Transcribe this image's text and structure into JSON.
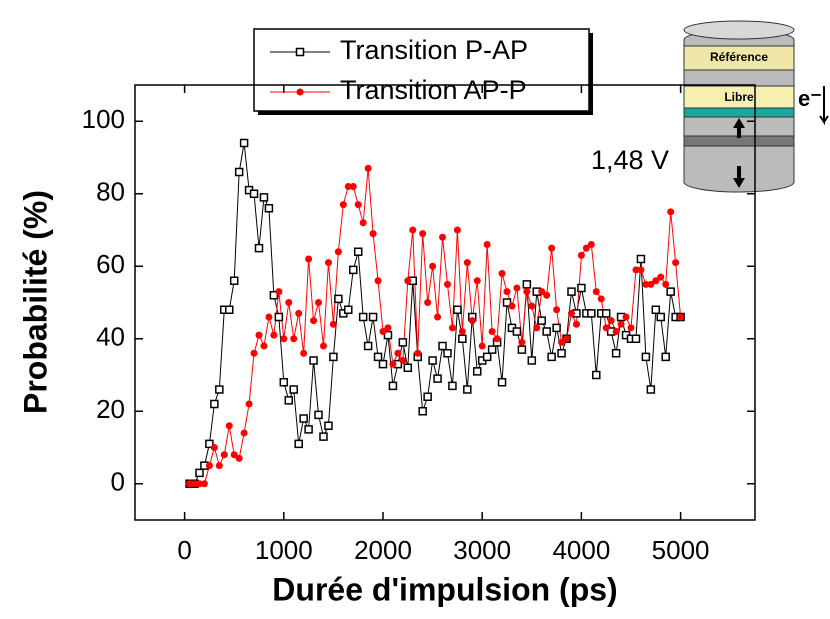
{
  "chart_data": {
    "type": "line",
    "x_label": "Durée d'impulsion (ps)",
    "y_label": "Probabilité (%)",
    "annotation": "1,48 V",
    "stack_labels": [
      "Référence",
      "Libre"
    ],
    "electron_label": "e⁻",
    "xlim": [
      -500,
      5750
    ],
    "ylim": [
      -10,
      110
    ],
    "xticks": [
      0,
      1000,
      2000,
      3000,
      4000,
      5000
    ],
    "yticks": [
      0,
      20,
      40,
      60,
      80,
      100
    ],
    "grid": false,
    "legend": "top",
    "x": [
      50,
      100,
      150,
      200,
      250,
      300,
      350,
      400,
      450,
      500,
      550,
      600,
      650,
      700,
      750,
      800,
      850,
      900,
      950,
      1000,
      1050,
      1100,
      1150,
      1200,
      1250,
      1300,
      1350,
      1400,
      1450,
      1500,
      1550,
      1600,
      1650,
      1700,
      1750,
      1800,
      1850,
      1900,
      1950,
      2000,
      2050,
      2100,
      2150,
      2200,
      2250,
      2300,
      2350,
      2400,
      2450,
      2500,
      2550,
      2600,
      2650,
      2700,
      2750,
      2800,
      2850,
      2900,
      2950,
      3000,
      3050,
      3100,
      3150,
      3200,
      3250,
      3300,
      3350,
      3400,
      3450,
      3500,
      3550,
      3600,
      3650,
      3700,
      3750,
      3800,
      3850,
      3900,
      3950,
      4000,
      4050,
      4100,
      4150,
      4200,
      4250,
      4300,
      4350,
      4400,
      4450,
      4500,
      4550,
      4600,
      4650,
      4700,
      4750,
      4800,
      4850,
      4900,
      4950,
      5000
    ],
    "series": [
      {
        "name": "Transition P-AP",
        "color": "#000000",
        "marker": "square",
        "values": [
          0,
          0,
          3,
          5,
          11,
          22,
          26,
          48,
          48,
          56,
          86,
          94,
          81,
          80,
          65,
          79,
          76,
          52,
          46,
          28,
          23,
          26,
          11,
          18,
          15,
          34,
          19,
          13,
          16,
          35,
          51,
          47,
          48,
          59,
          64,
          46,
          38,
          46,
          35,
          33,
          41,
          27,
          33,
          39,
          32,
          56,
          35,
          20,
          24,
          34,
          29,
          38,
          36,
          27,
          48,
          40,
          26,
          46,
          31,
          34,
          35,
          37,
          39,
          28,
          50,
          43,
          42,
          37,
          55,
          34,
          53,
          45,
          42,
          35,
          43,
          36,
          40,
          53,
          47,
          54,
          47,
          47,
          30,
          47,
          47,
          42,
          36,
          46,
          41,
          40,
          40,
          62,
          35,
          26,
          48,
          46,
          35,
          53,
          46,
          46
        ]
      },
      {
        "name": "Transition AP-P",
        "color": "#ff0000",
        "marker": "circle",
        "values": [
          0,
          0,
          0,
          0,
          5,
          10,
          5,
          8,
          16,
          8,
          7,
          14,
          22,
          36,
          41,
          38,
          46,
          41,
          53,
          40,
          50,
          40,
          47,
          36,
          62,
          45,
          50,
          38,
          61,
          44,
          64,
          77,
          82,
          82,
          77,
          72,
          87,
          69,
          56,
          42,
          43,
          33,
          36,
          34,
          56,
          70,
          36,
          69,
          50,
          60,
          46,
          68,
          55,
          43,
          70,
          42,
          61,
          45,
          56,
          38,
          66,
          42,
          40,
          58,
          53,
          49,
          54,
          39,
          53,
          49,
          43,
          53,
          52,
          65,
          48,
          39,
          40,
          47,
          44,
          63,
          65,
          66,
          53,
          51,
          43,
          45,
          42,
          44,
          46,
          43,
          59,
          59,
          55,
          55,
          56,
          57,
          55,
          75,
          61,
          46
        ]
      }
    ]
  }
}
